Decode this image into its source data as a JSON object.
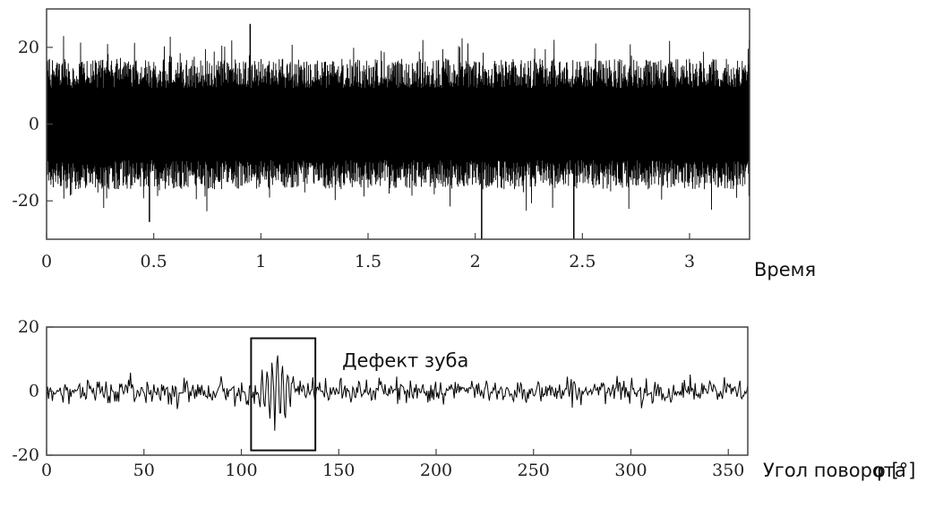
{
  "chart_data": [
    {
      "type": "line",
      "xlabel": "Время",
      "xlim": [
        0,
        3.28
      ],
      "ylim": [
        -30,
        30
      ],
      "x_ticks": [
        0,
        0.5,
        1,
        1.5,
        2,
        2.5,
        3
      ],
      "x_tick_labels": [
        "0",
        "0.5",
        "1",
        "1.5",
        "2",
        "2.5",
        "3"
      ],
      "y_ticks": [
        20,
        0,
        -20
      ],
      "y_tick_labels": [
        "20",
        "0",
        "-20"
      ],
      "grid": false,
      "series": [
        {
          "description": "dense broadband vibration signal",
          "typical_amplitude": [
            -17,
            17
          ],
          "peak_max": 29,
          "peak_min": -30,
          "sample_count": 2400
        }
      ]
    },
    {
      "type": "line",
      "xlabel": "Угол поворота",
      "xlabel_symbol": "φ [°]",
      "xlim": [
        0,
        360
      ],
      "ylim": [
        -20,
        20
      ],
      "x_ticks": [
        0,
        50,
        100,
        150,
        200,
        250,
        300,
        350
      ],
      "x_tick_labels": [
        "0",
        "50",
        "100",
        "150",
        "200",
        "250",
        "300",
        "350"
      ],
      "y_ticks": [
        20,
        0,
        -20
      ],
      "y_tick_labels": [
        "20",
        "0",
        "-20"
      ],
      "grid": false,
      "annotation": {
        "text": "Дефект зуба",
        "x_range": [
          105,
          138
        ],
        "y_range": [
          -18.5,
          16.5
        ]
      },
      "series": [
        {
          "description": "angle-domain averaged signal with tooth defect burst",
          "baseline_amplitude": [
            -4,
            4
          ],
          "defect_center_deg": 118,
          "defect_amplitude": [
            -10,
            11
          ]
        }
      ]
    }
  ]
}
